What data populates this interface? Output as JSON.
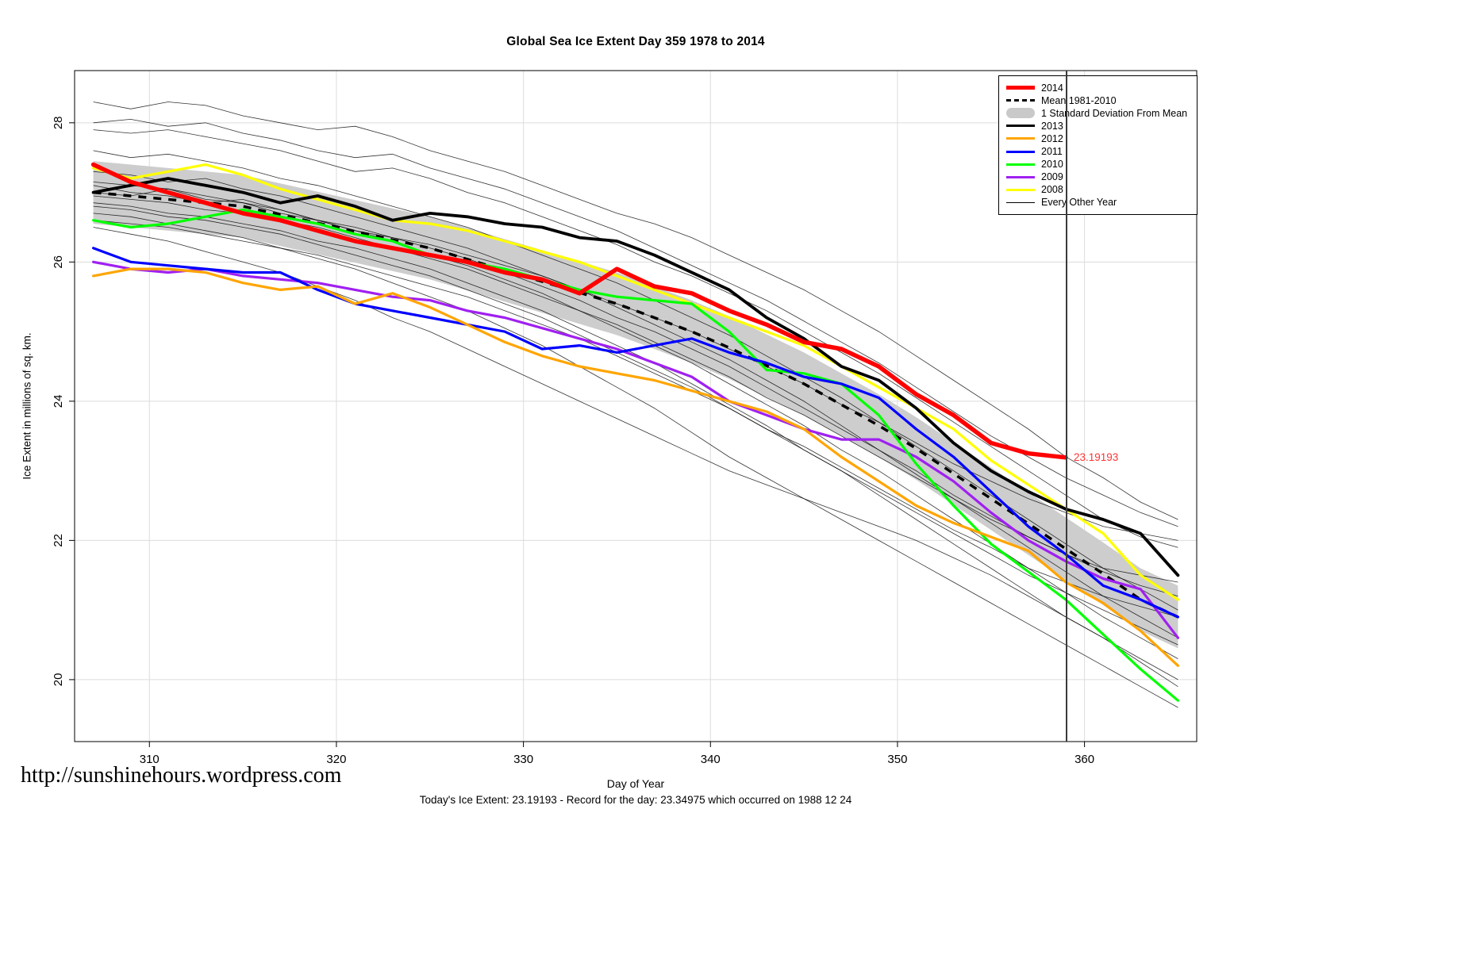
{
  "footer": {
    "url": "http://sunshinehours.wordpress.com",
    "summary": "Today's Ice Extent: 23.19193  - Record for the day: 23.34975 which occurred on 1988 12 24"
  },
  "legend": {
    "items": [
      {
        "label": "2014",
        "type": "line",
        "color": "#FF0000",
        "width": 5
      },
      {
        "label": "Mean 1981-2010",
        "type": "dashed",
        "color": "#000000",
        "width": 3
      },
      {
        "label": "1 Standard Deviation From Mean",
        "type": "band",
        "color": "#C9C9C9"
      },
      {
        "label": "2013",
        "type": "line",
        "color": "#000000",
        "width": 3
      },
      {
        "label": "2012",
        "type": "line",
        "color": "#FFA500",
        "width": 3
      },
      {
        "label": "2011",
        "type": "line",
        "color": "#0000FF",
        "width": 3
      },
      {
        "label": "2010",
        "type": "line",
        "color": "#00FF00",
        "width": 3
      },
      {
        "label": "2009",
        "type": "line",
        "color": "#A020F0",
        "width": 3
      },
      {
        "label": "2008",
        "type": "line",
        "color": "#FFFF00",
        "width": 3
      },
      {
        "label": "Every Other Year",
        "type": "line",
        "color": "#000000",
        "width": 1
      }
    ]
  },
  "chart_data": {
    "type": "line",
    "title": "Global Sea Ice Extent Day 359 1978 to 2014",
    "xlabel": "Day of Year",
    "ylabel": "Ice Extent in millions of sq. km.",
    "xlim": [
      306,
      366
    ],
    "ylim": [
      19.11,
      28.75
    ],
    "xticks": [
      310,
      320,
      330,
      340,
      350,
      360
    ],
    "yticks": [
      20,
      22,
      24,
      26,
      28
    ],
    "grid": true,
    "legend_position": "top-right",
    "vline_x": 359,
    "annotation": {
      "x": 359,
      "y": 23.19193,
      "text": "23.19193",
      "color": "#FF3333"
    },
    "x": [
      307,
      309,
      311,
      313,
      315,
      317,
      319,
      321,
      323,
      325,
      327,
      329,
      331,
      333,
      335,
      337,
      339,
      341,
      343,
      345,
      347,
      349,
      351,
      353,
      355,
      357,
      359,
      361,
      363,
      365
    ],
    "band": {
      "name": "1 Standard Deviation From Mean",
      "color": "#CDCDCD",
      "upper": [
        27.45,
        27.4,
        27.35,
        27.3,
        27.25,
        27.13,
        27.01,
        26.89,
        26.77,
        26.65,
        26.49,
        26.33,
        26.17,
        26.01,
        25.85,
        25.65,
        25.45,
        25.22,
        24.96,
        24.7,
        24.4,
        24.1,
        23.77,
        23.41,
        23.05,
        22.69,
        22.33,
        21.97,
        21.6,
        21.35
      ],
      "lower": [
        26.55,
        26.5,
        26.45,
        26.4,
        26.35,
        26.23,
        26.11,
        25.99,
        25.87,
        25.75,
        25.59,
        25.43,
        25.27,
        25.11,
        24.95,
        24.75,
        24.55,
        24.32,
        24.06,
        23.8,
        23.5,
        23.2,
        22.87,
        22.51,
        22.15,
        21.79,
        21.43,
        21.07,
        20.7,
        20.45
      ]
    },
    "mean": {
      "name": "Mean 1981-2010",
      "color": "#000000",
      "values": [
        27.0,
        26.95,
        26.9,
        26.85,
        26.8,
        26.68,
        26.56,
        26.44,
        26.32,
        26.2,
        26.04,
        25.88,
        25.72,
        25.56,
        25.4,
        25.2,
        25.0,
        24.77,
        24.51,
        24.25,
        23.95,
        23.65,
        23.32,
        22.96,
        22.6,
        22.24,
        21.88,
        21.52,
        21.15,
        20.9
      ]
    },
    "series": [
      {
        "name": "2014",
        "color": "#FF0000",
        "width": 5.5,
        "values": [
          27.4,
          27.15,
          27.0,
          26.85,
          26.7,
          26.6,
          26.45,
          26.3,
          26.2,
          26.1,
          26.0,
          25.85,
          25.75,
          25.55,
          25.9,
          25.65,
          25.55,
          25.3,
          25.1,
          24.85,
          24.75,
          24.5,
          24.1,
          23.8,
          23.4,
          23.25,
          23.19193,
          null,
          null,
          null
        ]
      },
      {
        "name": "2013",
        "color": "#000000",
        "width": 3.8,
        "values": [
          27.0,
          27.1,
          27.2,
          27.1,
          27.0,
          26.85,
          26.95,
          26.8,
          26.6,
          26.7,
          26.65,
          26.55,
          26.5,
          26.35,
          26.3,
          26.1,
          25.85,
          25.6,
          25.2,
          24.9,
          24.5,
          24.3,
          23.9,
          23.4,
          23.0,
          22.7,
          22.45,
          22.3,
          22.1,
          21.5
        ]
      },
      {
        "name": "2012",
        "color": "#FFA500",
        "width": 3.2,
        "values": [
          25.8,
          25.9,
          25.9,
          25.85,
          25.7,
          25.6,
          25.65,
          25.4,
          25.55,
          25.35,
          25.1,
          24.85,
          24.65,
          24.5,
          24.4,
          24.3,
          24.15,
          24.0,
          23.85,
          23.6,
          23.2,
          22.85,
          22.5,
          22.25,
          22.05,
          21.85,
          21.4,
          21.1,
          20.7,
          20.2
        ]
      },
      {
        "name": "2011",
        "color": "#0000FF",
        "width": 3.2,
        "values": [
          26.2,
          26.0,
          25.95,
          25.9,
          25.85,
          25.85,
          25.6,
          25.4,
          25.3,
          25.2,
          25.1,
          25.0,
          24.75,
          24.8,
          24.7,
          24.8,
          24.9,
          24.7,
          24.55,
          24.35,
          24.25,
          24.05,
          23.6,
          23.2,
          22.7,
          22.2,
          21.8,
          21.35,
          21.15,
          20.9
        ]
      },
      {
        "name": "2010",
        "color": "#00FF00",
        "width": 3.2,
        "values": [
          26.6,
          26.5,
          26.55,
          26.65,
          26.75,
          26.65,
          26.55,
          26.4,
          26.3,
          26.1,
          26.0,
          25.9,
          25.75,
          25.6,
          25.5,
          25.45,
          25.4,
          25.0,
          24.45,
          24.4,
          24.25,
          23.8,
          23.1,
          22.5,
          21.95,
          21.55,
          21.15,
          20.65,
          20.15,
          19.7
        ]
      },
      {
        "name": "2009",
        "color": "#A020F0",
        "width": 3.2,
        "values": [
          26.0,
          25.9,
          25.85,
          25.9,
          25.8,
          25.75,
          25.7,
          25.6,
          25.5,
          25.45,
          25.3,
          25.2,
          25.05,
          24.9,
          24.75,
          24.55,
          24.35,
          24.0,
          23.8,
          23.6,
          23.45,
          23.45,
          23.2,
          22.85,
          22.4,
          22.0,
          21.7,
          21.45,
          21.3,
          20.6
        ]
      },
      {
        "name": "2008",
        "color": "#FFFF00",
        "width": 3.2,
        "values": [
          27.35,
          27.2,
          27.3,
          27.4,
          27.25,
          27.05,
          26.9,
          26.75,
          26.6,
          26.55,
          26.45,
          26.3,
          26.15,
          26.0,
          25.8,
          25.6,
          25.4,
          25.2,
          25.0,
          24.8,
          24.5,
          24.2,
          23.9,
          23.6,
          23.15,
          22.8,
          22.45,
          22.1,
          21.5,
          21.15
        ]
      }
    ],
    "other_years": {
      "name": "Every Other Year",
      "color": "#000000",
      "series": [
        [
          28.3,
          28.2,
          28.3,
          28.25,
          28.1,
          28.0,
          27.9,
          27.95,
          27.8,
          27.6,
          27.45,
          27.3,
          27.1,
          26.9,
          26.7,
          26.55,
          26.35,
          26.1,
          25.85,
          25.6,
          25.3,
          25.0,
          24.65,
          24.3,
          23.95,
          23.6,
          23.2,
          22.9,
          22.55,
          22.3
        ],
        [
          27.9,
          27.85,
          27.9,
          27.8,
          27.7,
          27.6,
          27.45,
          27.3,
          27.35,
          27.2,
          27.0,
          26.85,
          26.65,
          26.45,
          26.25,
          26.0,
          25.8,
          25.55,
          25.3,
          25.0,
          24.7,
          24.4,
          24.05,
          23.7,
          23.35,
          23.0,
          22.65,
          22.3,
          22.05,
          21.9
        ],
        [
          27.6,
          27.5,
          27.55,
          27.45,
          27.35,
          27.2,
          27.1,
          26.95,
          26.8,
          26.65,
          26.5,
          26.3,
          26.1,
          25.9,
          25.7,
          25.45,
          25.2,
          24.95,
          24.65,
          24.35,
          24.05,
          23.7,
          23.35,
          23.0,
          22.65,
          22.3,
          21.95,
          21.6,
          21.3,
          21.0
        ],
        [
          27.3,
          27.25,
          27.15,
          27.2,
          27.05,
          26.95,
          26.8,
          26.65,
          26.5,
          26.35,
          26.2,
          26.0,
          25.8,
          25.6,
          25.35,
          25.1,
          24.85,
          24.6,
          24.3,
          24.0,
          23.65,
          23.3,
          22.95,
          22.6,
          22.25,
          21.9,
          21.55,
          21.2,
          20.9,
          20.6
        ],
        [
          27.1,
          27.0,
          26.95,
          26.85,
          26.9,
          26.75,
          26.6,
          26.45,
          26.3,
          26.1,
          25.95,
          25.75,
          25.55,
          25.3,
          25.05,
          24.8,
          24.55,
          24.25,
          23.95,
          23.65,
          23.3,
          23.0,
          22.65,
          22.3,
          21.95,
          21.6,
          21.25,
          20.9,
          20.6,
          20.3
        ],
        [
          26.95,
          26.9,
          26.85,
          26.75,
          26.7,
          26.6,
          26.5,
          26.35,
          26.2,
          26.05,
          25.9,
          25.7,
          25.5,
          25.3,
          25.1,
          24.85,
          24.6,
          24.35,
          24.05,
          23.8,
          23.5,
          23.2,
          22.9,
          22.6,
          22.3,
          22.05,
          21.8,
          21.6,
          21.5,
          21.4
        ],
        [
          26.85,
          26.8,
          26.7,
          26.65,
          26.55,
          26.45,
          26.3,
          26.2,
          26.05,
          25.9,
          25.7,
          25.5,
          25.3,
          25.05,
          24.8,
          24.55,
          24.25,
          23.95,
          23.65,
          23.3,
          23.0,
          22.65,
          22.3,
          21.95,
          21.6,
          21.25,
          20.9,
          20.6,
          20.3,
          20.0
        ],
        [
          26.7,
          26.65,
          26.55,
          26.45,
          26.35,
          26.2,
          26.05,
          25.9,
          25.7,
          25.5,
          25.3,
          25.05,
          24.8,
          24.5,
          24.2,
          23.9,
          23.55,
          23.2,
          22.9,
          22.6,
          22.3,
          22.0,
          21.7,
          21.4,
          21.1,
          20.8,
          20.5,
          20.2,
          19.9,
          19.6
        ],
        [
          26.6,
          26.55,
          26.5,
          26.4,
          26.3,
          26.2,
          26.1,
          25.95,
          25.8,
          25.65,
          25.5,
          25.3,
          25.1,
          24.9,
          24.65,
          24.4,
          24.15,
          23.9,
          23.6,
          23.35,
          23.05,
          22.75,
          22.45,
          22.15,
          21.9,
          21.6,
          21.4,
          21.2,
          21.05,
          20.9
        ],
        [
          26.5,
          26.4,
          26.3,
          26.15,
          26.0,
          25.85,
          25.65,
          25.45,
          25.2,
          25.0,
          24.75,
          24.5,
          24.25,
          24.0,
          23.75,
          23.5,
          23.25,
          23.0,
          22.8,
          22.6,
          22.4,
          22.2,
          22.0,
          21.75,
          21.5,
          21.2,
          20.9,
          20.6,
          20.25,
          19.9
        ],
        [
          27.15,
          27.1,
          27.05,
          26.95,
          26.85,
          26.75,
          26.6,
          26.5,
          26.35,
          26.2,
          26.05,
          25.85,
          25.65,
          25.45,
          25.2,
          25.0,
          24.75,
          24.5,
          24.2,
          23.9,
          23.6,
          23.3,
          23.0,
          22.65,
          22.35,
          22.05,
          21.8,
          21.55,
          21.35,
          21.2
        ],
        [
          27.0,
          26.95,
          27.05,
          26.9,
          26.85,
          26.7,
          26.6,
          26.45,
          26.35,
          26.25,
          26.1,
          25.95,
          25.8,
          25.6,
          25.4,
          25.2,
          25.0,
          24.75,
          24.5,
          24.25,
          23.95,
          23.7,
          23.4,
          23.1,
          22.85,
          22.6,
          22.4,
          22.2,
          22.1,
          22.0
        ],
        [
          26.8,
          26.75,
          26.65,
          26.6,
          26.5,
          26.4,
          26.25,
          26.1,
          25.95,
          25.8,
          25.6,
          25.4,
          25.2,
          24.95,
          24.7,
          24.45,
          24.2,
          23.9,
          23.6,
          23.3,
          23.0,
          22.7,
          22.4,
          22.1,
          21.8,
          21.5,
          21.25,
          21.0,
          20.75,
          20.5
        ],
        [
          28.0,
          28.05,
          27.95,
          28.0,
          27.85,
          27.75,
          27.6,
          27.5,
          27.55,
          27.35,
          27.2,
          27.05,
          26.85,
          26.65,
          26.45,
          26.2,
          25.95,
          25.7,
          25.45,
          25.15,
          24.85,
          24.55,
          24.2,
          23.85,
          23.5,
          23.2,
          22.9,
          22.65,
          22.4,
          22.2
        ]
      ]
    }
  }
}
